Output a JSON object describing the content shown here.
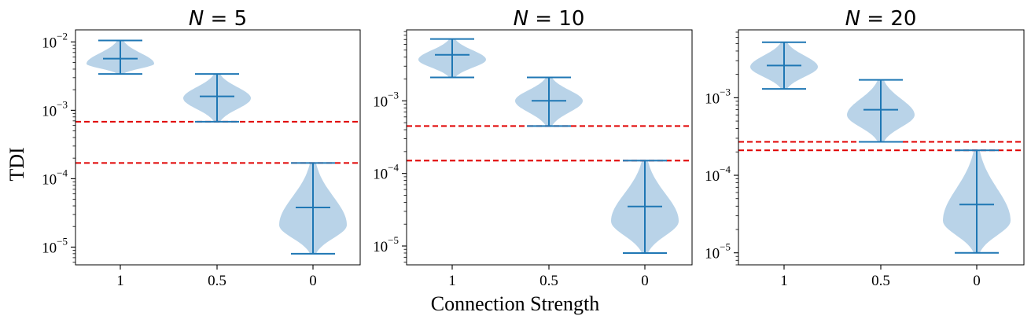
{
  "figure": {
    "ylabel": "TDI",
    "xlabel": "Connection Strength"
  },
  "colors": {
    "violin_fill": "#b9d3e8",
    "violin_line": "#1f77b4",
    "threshold_line": "#e00000"
  },
  "chart_data": [
    {
      "type": "violin",
      "title": "N = 5",
      "title_var": "N",
      "title_eq": " = ",
      "title_num": "5",
      "categories": [
        "1",
        "0.5",
        "0"
      ],
      "yscale": "log",
      "ylim": [
        5.5e-06,
        0.015
      ],
      "ytick_exponents": [
        -5,
        -4,
        -3,
        -2
      ],
      "violins": [
        {
          "category": "1",
          "min": 0.0034,
          "max": 0.0105,
          "median": 0.0057,
          "mode": 0.0048
        },
        {
          "category": "0.5",
          "min": 0.00068,
          "max": 0.0034,
          "median": 0.0016,
          "mode": 0.0015
        },
        {
          "category": "0",
          "min": 8e-06,
          "max": 0.00017,
          "median": 3.8e-05,
          "mode": 2.1e-05
        }
      ],
      "thresholds": [
        0.00068,
        0.00017
      ]
    },
    {
      "type": "violin",
      "title": "N = 10",
      "title_var": "N",
      "title_eq": " = ",
      "title_num": "10",
      "categories": [
        "1",
        "0.5",
        "0"
      ],
      "yscale": "log",
      "ylim": [
        5.5e-06,
        0.0095
      ],
      "ytick_exponents": [
        -5,
        -4,
        -3
      ],
      "violins": [
        {
          "category": "1",
          "min": 0.0021,
          "max": 0.0071,
          "median": 0.0043,
          "mode": 0.0037
        },
        {
          "category": "0.5",
          "min": 0.00045,
          "max": 0.0021,
          "median": 0.001,
          "mode": 0.001
        },
        {
          "category": "0",
          "min": 8e-06,
          "max": 0.00015,
          "median": 3.5e-05,
          "mode": 2.2e-05
        }
      ],
      "thresholds": [
        0.00045,
        0.00015
      ]
    },
    {
      "type": "violin",
      "title": "N = 20",
      "title_var": "N",
      "title_eq": " = ",
      "title_num": "20",
      "categories": [
        "1",
        "0.5",
        "0"
      ],
      "yscale": "log",
      "ylim": [
        7e-06,
        0.0075
      ],
      "ytick_exponents": [
        -5,
        -4,
        -3
      ],
      "violins": [
        {
          "category": "1",
          "min": 0.0013,
          "max": 0.0052,
          "median": 0.0026,
          "mode": 0.0025
        },
        {
          "category": "0.5",
          "min": 0.00027,
          "max": 0.0017,
          "median": 0.0007,
          "mode": 0.0006
        },
        {
          "category": "0",
          "min": 1e-05,
          "max": 0.00021,
          "median": 4.2e-05,
          "mode": 2.6e-05
        }
      ],
      "thresholds": [
        0.00027,
        0.00021
      ]
    }
  ]
}
